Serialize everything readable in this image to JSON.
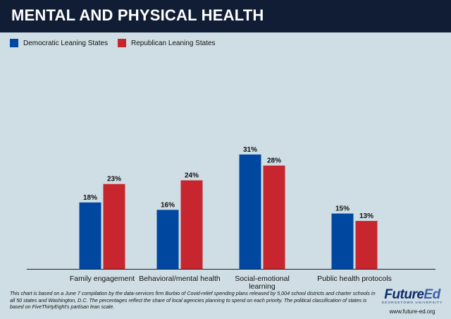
{
  "header": {
    "title": "MENTAL AND PHYSICAL HEALTH"
  },
  "colors": {
    "democratic": "#0047a0",
    "republican": "#c8262e",
    "header_bg": "#111d35",
    "plot_bg": "#cfdde4"
  },
  "chart_data": {
    "type": "bar",
    "title": "MENTAL AND PHYSICAL HEALTH",
    "categories": [
      "Family engagement",
      "Behavioral/mental health",
      "Social-emotional learning",
      "Public health protocols"
    ],
    "series": [
      {
        "name": "Democratic Leaning States",
        "values": [
          18,
          16,
          31,
          15
        ],
        "labels": [
          "18%",
          "16%",
          "31%",
          "15%"
        ]
      },
      {
        "name": "Republican Leaning States",
        "values": [
          23,
          24,
          28,
          13
        ],
        "labels": [
          "23%",
          "24%",
          "28%",
          "13%"
        ]
      }
    ],
    "ylim": [
      0,
      35
    ],
    "grid": false,
    "legend": "top-left"
  },
  "footnote": "This chart is based on a June 7 compilation by the data-services firm Burbio of Covid-relief spending plans released by 5,004 school districts and charter schools in all 50 states and Washington, D.C. The percentages reflect the share of local agencies planning to spend on each priority. The political classification of states is based on FiveThirtyEight's partisan lean scale.",
  "logo": {
    "part1": "Future",
    "part2": "Ed",
    "subtitle": "GEORGETOWN UNIVERSITY",
    "url": "www.future-ed.org"
  }
}
